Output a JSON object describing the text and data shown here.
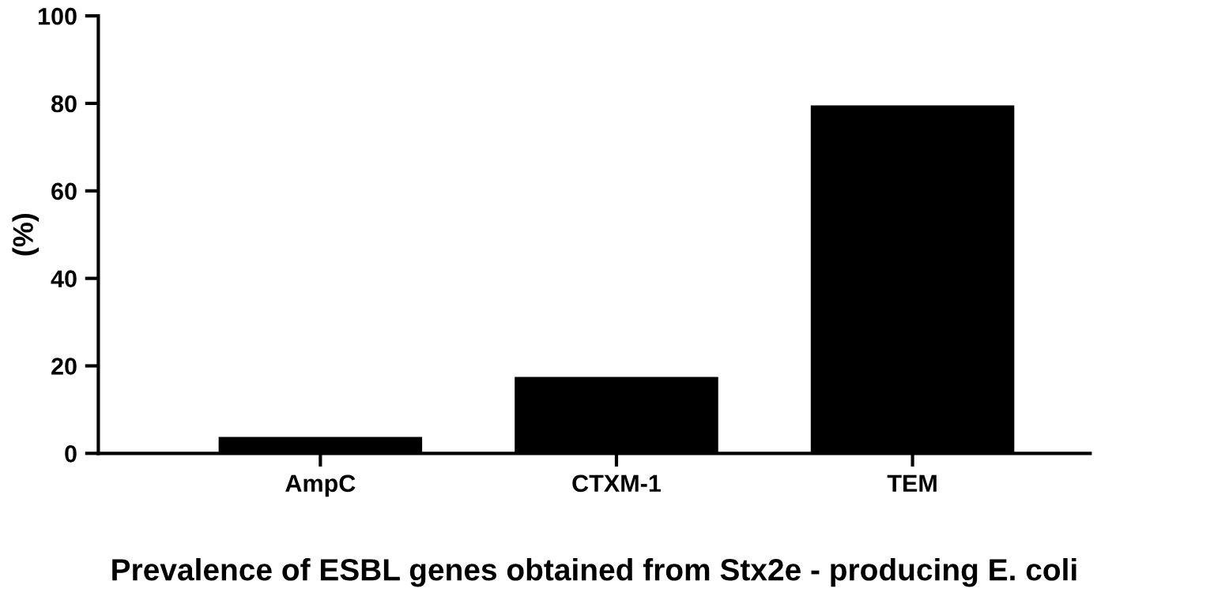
{
  "chart_data": {
    "type": "bar",
    "xlabel": "Prevalence of ESBL genes obtained from Stx2e - producing E. coli",
    "ylabel": "(%)",
    "categories": [
      "AmpC",
      "CTXM-1",
      "TEM"
    ],
    "values": [
      3.5,
      17.2,
      79.3
    ],
    "color": "#000000",
    "ylim": [
      0,
      100
    ],
    "yticks": [
      0,
      20,
      40,
      60,
      80,
      100
    ],
    "grid": false
  }
}
